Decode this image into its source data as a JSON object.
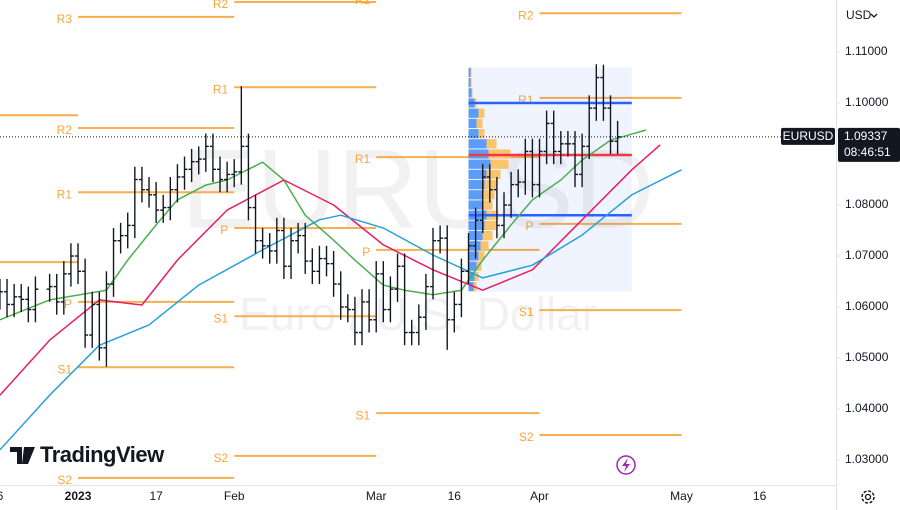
{
  "chart_data": {
    "type": "ohlc",
    "symbol": "EURUSD",
    "description": "Euro / U.S. Dollar",
    "currency": "USD",
    "logo": "TradingView",
    "last_price": 1.09337,
    "countdown": "08:46:51",
    "xlim": [
      -10.99,
      106.76
    ],
    "ylim": [
      1.0251,
      1.1202
    ],
    "xticks": [
      {
        "value": -11,
        "label": "6"
      },
      {
        "value": 0,
        "label": "2023"
      },
      {
        "value": 11,
        "label": "17"
      },
      {
        "value": 22,
        "label": "Feb"
      },
      {
        "value": 42,
        "label": "Mar"
      },
      {
        "value": 53,
        "label": "16"
      },
      {
        "value": 65,
        "label": "Apr"
      },
      {
        "value": 85,
        "label": "May"
      },
      {
        "value": 96,
        "label": "16"
      }
    ],
    "yticks": [
      {
        "value": 1.03,
        "label": "1.03000"
      },
      {
        "value": 1.04,
        "label": "1.04000"
      },
      {
        "value": 1.05,
        "label": "1.05000"
      },
      {
        "value": 1.06,
        "label": "1.06000"
      },
      {
        "value": 1.07,
        "label": "1.07000"
      },
      {
        "value": 1.08,
        "label": "1.08000"
      },
      {
        "value": 1.1,
        "label": "1.10000"
      },
      {
        "value": 1.11,
        "label": "1.11000"
      }
    ],
    "color": "#131722",
    "x": [
      -11,
      -10,
      -9,
      -8,
      -7,
      -6,
      -4,
      -3,
      -2,
      -1,
      0,
      1,
      2,
      3,
      4,
      5,
      6,
      7,
      8,
      9,
      10,
      11,
      12,
      13,
      14,
      15,
      16,
      17,
      18,
      19,
      20,
      21,
      22,
      23,
      24,
      25,
      26,
      27,
      28,
      29,
      30,
      31,
      32,
      33,
      34,
      35,
      36,
      37,
      38,
      39,
      40,
      41,
      42,
      43,
      44,
      45,
      46,
      47,
      48,
      49,
      50,
      51,
      52,
      53,
      54,
      55,
      56,
      57,
      58,
      59,
      60,
      61,
      62,
      63,
      64,
      65,
      66,
      67,
      68,
      69,
      70,
      71,
      72,
      73,
      74,
      75,
      76
    ],
    "open": [
      1.062,
      1.063,
      1.0605,
      1.062,
      1.0615,
      1.0595,
      1.0635,
      1.064,
      1.061,
      1.0665,
      1.07,
      1.067,
      1.0545,
      1.0605,
      1.052,
      1.0645,
      1.073,
      1.074,
      1.076,
      1.085,
      1.083,
      1.082,
      1.079,
      1.0795,
      1.083,
      1.0855,
      1.087,
      1.0885,
      1.089,
      1.0915,
      1.087,
      1.085,
      1.086,
      1.0865,
      1.0915,
      1.0795,
      1.073,
      1.072,
      1.071,
      1.075,
      1.068,
      1.073,
      1.074,
      1.069,
      1.067,
      1.0695,
      1.0685,
      1.0645,
      1.06,
      1.0595,
      1.055,
      1.061,
      1.0575,
      1.0665,
      1.0595,
      1.0635,
      1.068,
      1.055,
      1.055,
      1.058,
      1.064,
      1.073,
      1.0735,
      1.0575,
      1.0605,
      1.067,
      1.072,
      1.077,
      1.0855,
      1.083,
      1.076,
      1.08,
      1.084,
      1.0845,
      1.0905,
      1.084,
      1.0905,
      1.096,
      1.0905,
      1.092,
      1.092,
      1.086,
      1.0915,
      1.099,
      1.105,
      1.099,
      1.0925
    ],
    "high": [
      1.0655,
      1.0655,
      1.0645,
      1.0645,
      1.064,
      1.066,
      1.0665,
      1.0665,
      1.069,
      1.0725,
      1.0725,
      1.0695,
      1.063,
      1.063,
      1.067,
      1.0755,
      1.0765,
      1.0785,
      1.0875,
      1.0875,
      1.0855,
      1.0845,
      1.082,
      1.0855,
      1.088,
      1.0895,
      1.091,
      1.0915,
      1.094,
      1.094,
      1.0895,
      1.0885,
      1.089,
      1.1033,
      1.094,
      1.082,
      1.0755,
      1.0745,
      1.0775,
      1.0775,
      1.0755,
      1.0765,
      1.0765,
      1.0715,
      1.072,
      1.072,
      1.071,
      1.067,
      1.0625,
      1.062,
      1.0635,
      1.0635,
      1.069,
      1.069,
      1.066,
      1.0705,
      1.0705,
      1.0575,
      1.0605,
      1.0665,
      1.0755,
      1.076,
      1.076,
      1.063,
      1.0695,
      1.0745,
      1.0795,
      1.088,
      1.088,
      1.0855,
      1.0825,
      1.0865,
      1.087,
      1.093,
      1.093,
      1.093,
      1.0985,
      1.0985,
      1.0945,
      1.0945,
      1.0945,
      1.094,
      1.1015,
      1.1076,
      1.1075,
      1.1015,
      1.0965
    ],
    "low": [
      1.0595,
      1.058,
      1.058,
      1.059,
      1.057,
      1.057,
      1.061,
      1.0585,
      1.0585,
      1.064,
      1.0645,
      1.052,
      1.052,
      1.0495,
      1.0483,
      1.062,
      1.0705,
      1.0715,
      1.0735,
      1.0805,
      1.0795,
      1.0765,
      1.0765,
      1.077,
      1.0805,
      1.083,
      1.0845,
      1.086,
      1.0865,
      1.0845,
      1.0825,
      1.0825,
      1.0835,
      1.084,
      1.077,
      1.0705,
      1.0695,
      1.0685,
      1.0685,
      1.0655,
      1.0655,
      1.0705,
      1.0665,
      1.0645,
      1.0645,
      1.066,
      1.062,
      1.0575,
      1.057,
      1.0525,
      1.0525,
      1.055,
      1.055,
      1.057,
      1.057,
      1.061,
      1.0525,
      1.0525,
      1.0525,
      1.0555,
      1.0615,
      1.0705,
      1.0516,
      1.055,
      1.058,
      1.0645,
      1.0695,
      1.0745,
      1.0805,
      1.0735,
      1.0735,
      1.0775,
      1.0815,
      1.082,
      1.0815,
      1.0815,
      1.088,
      1.088,
      1.088,
      1.0895,
      1.0835,
      1.0835,
      1.089,
      1.0965,
      1.0965,
      1.09,
      1.09
    ],
    "close": [
      1.063,
      1.0605,
      1.062,
      1.0615,
      1.0595,
      1.0635,
      1.064,
      1.061,
      1.0665,
      1.07,
      1.067,
      1.0545,
      1.0605,
      1.052,
      1.0645,
      1.073,
      1.074,
      1.076,
      1.085,
      1.083,
      1.082,
      1.079,
      1.0795,
      1.083,
      1.0855,
      1.087,
      1.0885,
      1.089,
      1.0915,
      1.087,
      1.085,
      1.086,
      1.0865,
      1.0915,
      1.0795,
      1.073,
      1.072,
      1.071,
      1.075,
      1.068,
      1.073,
      1.074,
      1.069,
      1.067,
      1.0695,
      1.0685,
      1.0645,
      1.06,
      1.0595,
      1.055,
      1.061,
      1.0575,
      1.0665,
      1.0595,
      1.0635,
      1.068,
      1.055,
      1.055,
      1.058,
      1.064,
      1.073,
      1.0735,
      1.0575,
      1.0605,
      1.067,
      1.072,
      1.077,
      1.0855,
      1.083,
      1.076,
      1.08,
      1.084,
      1.0845,
      1.0905,
      1.084,
      1.0905,
      1.096,
      1.0905,
      1.092,
      1.092,
      1.086,
      1.0915,
      1.099,
      1.105,
      1.099,
      1.0925,
      1.09337
    ],
    "lines": [
      {
        "color": "#4caf50",
        "x": [
          -11,
          -4,
          4,
          7,
          11,
          14,
          18,
          21,
          26,
          29,
          32,
          36,
          39,
          43,
          46,
          50,
          54,
          57,
          61,
          64,
          68,
          71,
          75,
          80
        ],
        "values": [
          1.0575,
          1.0614,
          1.0633,
          1.0692,
          1.0761,
          1.081,
          1.0839,
          1.0849,
          1.0884,
          1.0849,
          1.078,
          1.0731,
          1.0692,
          1.0643,
          1.0633,
          1.0624,
          1.0633,
          1.0692,
          1.0761,
          1.081,
          1.0849,
          1.0888,
          1.0927,
          1.0947
        ]
      },
      {
        "color": "#e91e63",
        "x": [
          -11,
          -4,
          3,
          9,
          14,
          21,
          29,
          36,
          43,
          50,
          57,
          64,
          71,
          78,
          82
        ],
        "values": [
          1.0427,
          1.0535,
          1.0614,
          1.0604,
          1.0692,
          1.079,
          1.0849,
          1.08,
          1.0722,
          1.0673,
          1.0633,
          1.0673,
          1.0771,
          1.0869,
          1.0918
        ]
      },
      {
        "color": "#26a0da",
        "x": [
          -11,
          -4,
          3,
          10,
          17,
          26,
          34,
          37,
          43,
          50,
          57,
          64,
          71,
          78,
          85
        ],
        "values": [
          1.032,
          1.0427,
          1.0525,
          1.0565,
          1.0643,
          1.0712,
          1.0771,
          1.078,
          1.0755,
          1.0702,
          1.0657,
          1.0682,
          1.0741,
          1.082,
          1.0869
        ]
      }
    ],
    "pivot_color": "#f7a63b",
    "pivots": [
      {
        "start": -22,
        "end": 0,
        "levels": [
          {
            "label": null,
            "value": 1.0976
          },
          {
            "label": null,
            "value": 1.0688
          }
        ]
      },
      {
        "start": 0,
        "end": 22,
        "levels": [
          {
            "label": "R3",
            "value": 1.1169
          },
          {
            "label": "R2",
            "value": 1.0951
          },
          {
            "label": "R1",
            "value": 1.0825
          },
          {
            "label": "P",
            "value": 1.061
          },
          {
            "label": "S1",
            "value": 1.0482
          },
          {
            "label": "S2",
            "value": 1.0265
          }
        ]
      },
      {
        "start": 22,
        "end": 42,
        "levels": [
          {
            "label": "R2",
            "value": 1.1198
          },
          {
            "label": "R1",
            "value": 1.1031
          },
          {
            "label": "P",
            "value": 1.0755
          },
          {
            "label": "S1",
            "value": 1.0582
          },
          {
            "label": "S2",
            "value": 1.0308
          }
        ]
      },
      {
        "start": 42,
        "end": 65,
        "levels": [
          {
            "label": "R2",
            "value": 1.1206
          },
          {
            "label": "R1",
            "value": 1.0894
          },
          {
            "label": "P",
            "value": 1.0712
          },
          {
            "label": "S1",
            "value": 1.0392
          }
        ]
      },
      {
        "start": 65,
        "end": 85,
        "levels": [
          {
            "label": "R2",
            "value": 1.1176
          },
          {
            "label": "R1",
            "value": 1.101
          },
          {
            "label": "P",
            "value": 1.0763
          },
          {
            "label": "S1",
            "value": 1.0594
          },
          {
            "label": "S2",
            "value": 1.0349
          }
        ]
      }
    ],
    "profile": {
      "xrange": [
        55,
        78
      ],
      "bins": [
        1.063,
        1.065,
        1.067,
        1.069,
        1.071,
        1.073,
        1.075,
        1.077,
        1.079,
        1.081,
        1.083,
        1.085,
        1.087,
        1.089,
        1.091,
        1.093,
        1.095,
        1.097,
        1.099,
        1.101,
        1.103,
        1.105,
        1.107
      ],
      "down": [
        5,
        6,
        8,
        10,
        12,
        14,
        16,
        18,
        14,
        14,
        16,
        18,
        22,
        20,
        18,
        10,
        8,
        10,
        6,
        3,
        2,
        2
      ],
      "up": [
        3,
        4,
        5,
        6,
        8,
        10,
        12,
        12,
        10,
        12,
        12,
        14,
        18,
        22,
        10,
        6,
        6,
        6,
        2,
        1,
        1,
        1
      ],
      "down_color": "#5b9cf6",
      "up_color": "#f9c46b",
      "poc": 1.0898,
      "poc_color": "#f23645",
      "value_area": [
        1.1,
        1.078
      ],
      "value_area_color": "#2962ff"
    }
  }
}
